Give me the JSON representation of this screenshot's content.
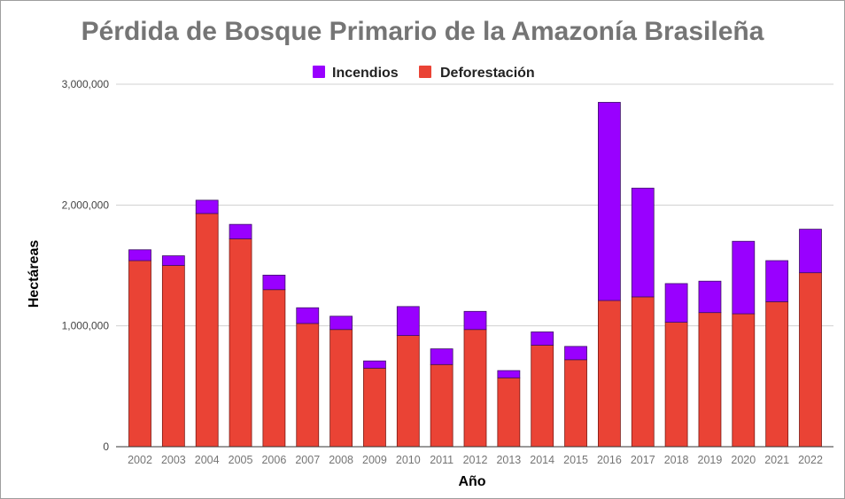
{
  "chart_data": {
    "type": "bar",
    "stacked": true,
    "title": "Pérdida de Bosque Primario de la Amazonía Brasileña",
    "xlabel": "Año",
    "ylabel": "Hectáreas",
    "ylim": [
      0,
      3000000
    ],
    "yticks": [
      {
        "value": 0,
        "label": "0"
      },
      {
        "value": 1000000,
        "label": "1,000,000"
      },
      {
        "value": 2000000,
        "label": "2,000,000"
      },
      {
        "value": 3000000,
        "label": "3,000,000"
      }
    ],
    "grid": true,
    "legend_position": "top-center",
    "categories": [
      "2002",
      "2003",
      "2004",
      "2005",
      "2006",
      "2007",
      "2008",
      "2009",
      "2010",
      "2011",
      "2012",
      "2013",
      "2014",
      "2015",
      "2016",
      "2017",
      "2018",
      "2019",
      "2020",
      "2021",
      "2022"
    ],
    "series": [
      {
        "name": "Deforestación",
        "color": "#ea4335",
        "values": [
          1540000,
          1500000,
          1930000,
          1720000,
          1300000,
          1020000,
          970000,
          650000,
          920000,
          680000,
          970000,
          570000,
          840000,
          720000,
          1210000,
          1240000,
          1030000,
          1110000,
          1100000,
          1200000,
          1440000
        ]
      },
      {
        "name": "Incendios",
        "color": "#9900ff",
        "values": [
          90000,
          80000,
          110000,
          120000,
          120000,
          130000,
          110000,
          60000,
          240000,
          130000,
          150000,
          60000,
          110000,
          110000,
          1640000,
          900000,
          320000,
          260000,
          600000,
          340000,
          360000
        ]
      }
    ],
    "legend_order": [
      "Incendios",
      "Deforestación"
    ]
  }
}
